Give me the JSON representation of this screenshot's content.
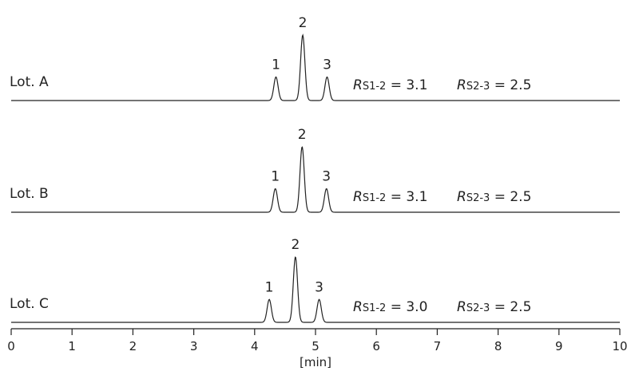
{
  "chart_data": {
    "type": "line",
    "title": "",
    "xlabel": "[min]",
    "ylabel": "",
    "xlim": [
      0,
      10
    ],
    "x_ticks": [
      "0",
      "1",
      "2",
      "3",
      "4",
      "5",
      "6",
      "7",
      "8",
      "9",
      "10"
    ],
    "grid": false,
    "series": [
      {
        "name": "Lot. A",
        "peaks": [
          {
            "label": "1",
            "retention_min": 4.35,
            "rel_height": 0.36
          },
          {
            "label": "2",
            "retention_min": 4.79,
            "rel_height": 1.0
          },
          {
            "label": "3",
            "retention_min": 5.19,
            "rel_height": 0.36
          }
        ],
        "resolution": [
          {
            "prefix": "R",
            "sub": "S1-2",
            "value": "3.1"
          },
          {
            "prefix": "R",
            "sub": "S2-3",
            "value": "2.5"
          }
        ]
      },
      {
        "name": "Lot. B",
        "peaks": [
          {
            "label": "1",
            "retention_min": 4.34,
            "rel_height": 0.36
          },
          {
            "label": "2",
            "retention_min": 4.78,
            "rel_height": 1.0
          },
          {
            "label": "3",
            "retention_min": 5.18,
            "rel_height": 0.36
          }
        ],
        "resolution": [
          {
            "prefix": "R",
            "sub": "S1-2",
            "value": "3.1"
          },
          {
            "prefix": "R",
            "sub": "S2-3",
            "value": "2.5"
          }
        ]
      },
      {
        "name": "Lot. C",
        "peaks": [
          {
            "label": "1",
            "retention_min": 4.24,
            "rel_height": 0.35
          },
          {
            "label": "2",
            "retention_min": 4.67,
            "rel_height": 1.0
          },
          {
            "label": "3",
            "retention_min": 5.06,
            "rel_height": 0.35
          }
        ],
        "resolution": [
          {
            "prefix": "R",
            "sub": "S1-2",
            "value": "3.0"
          },
          {
            "prefix": "R",
            "sub": "S2-3",
            "value": "2.5"
          }
        ]
      }
    ]
  }
}
